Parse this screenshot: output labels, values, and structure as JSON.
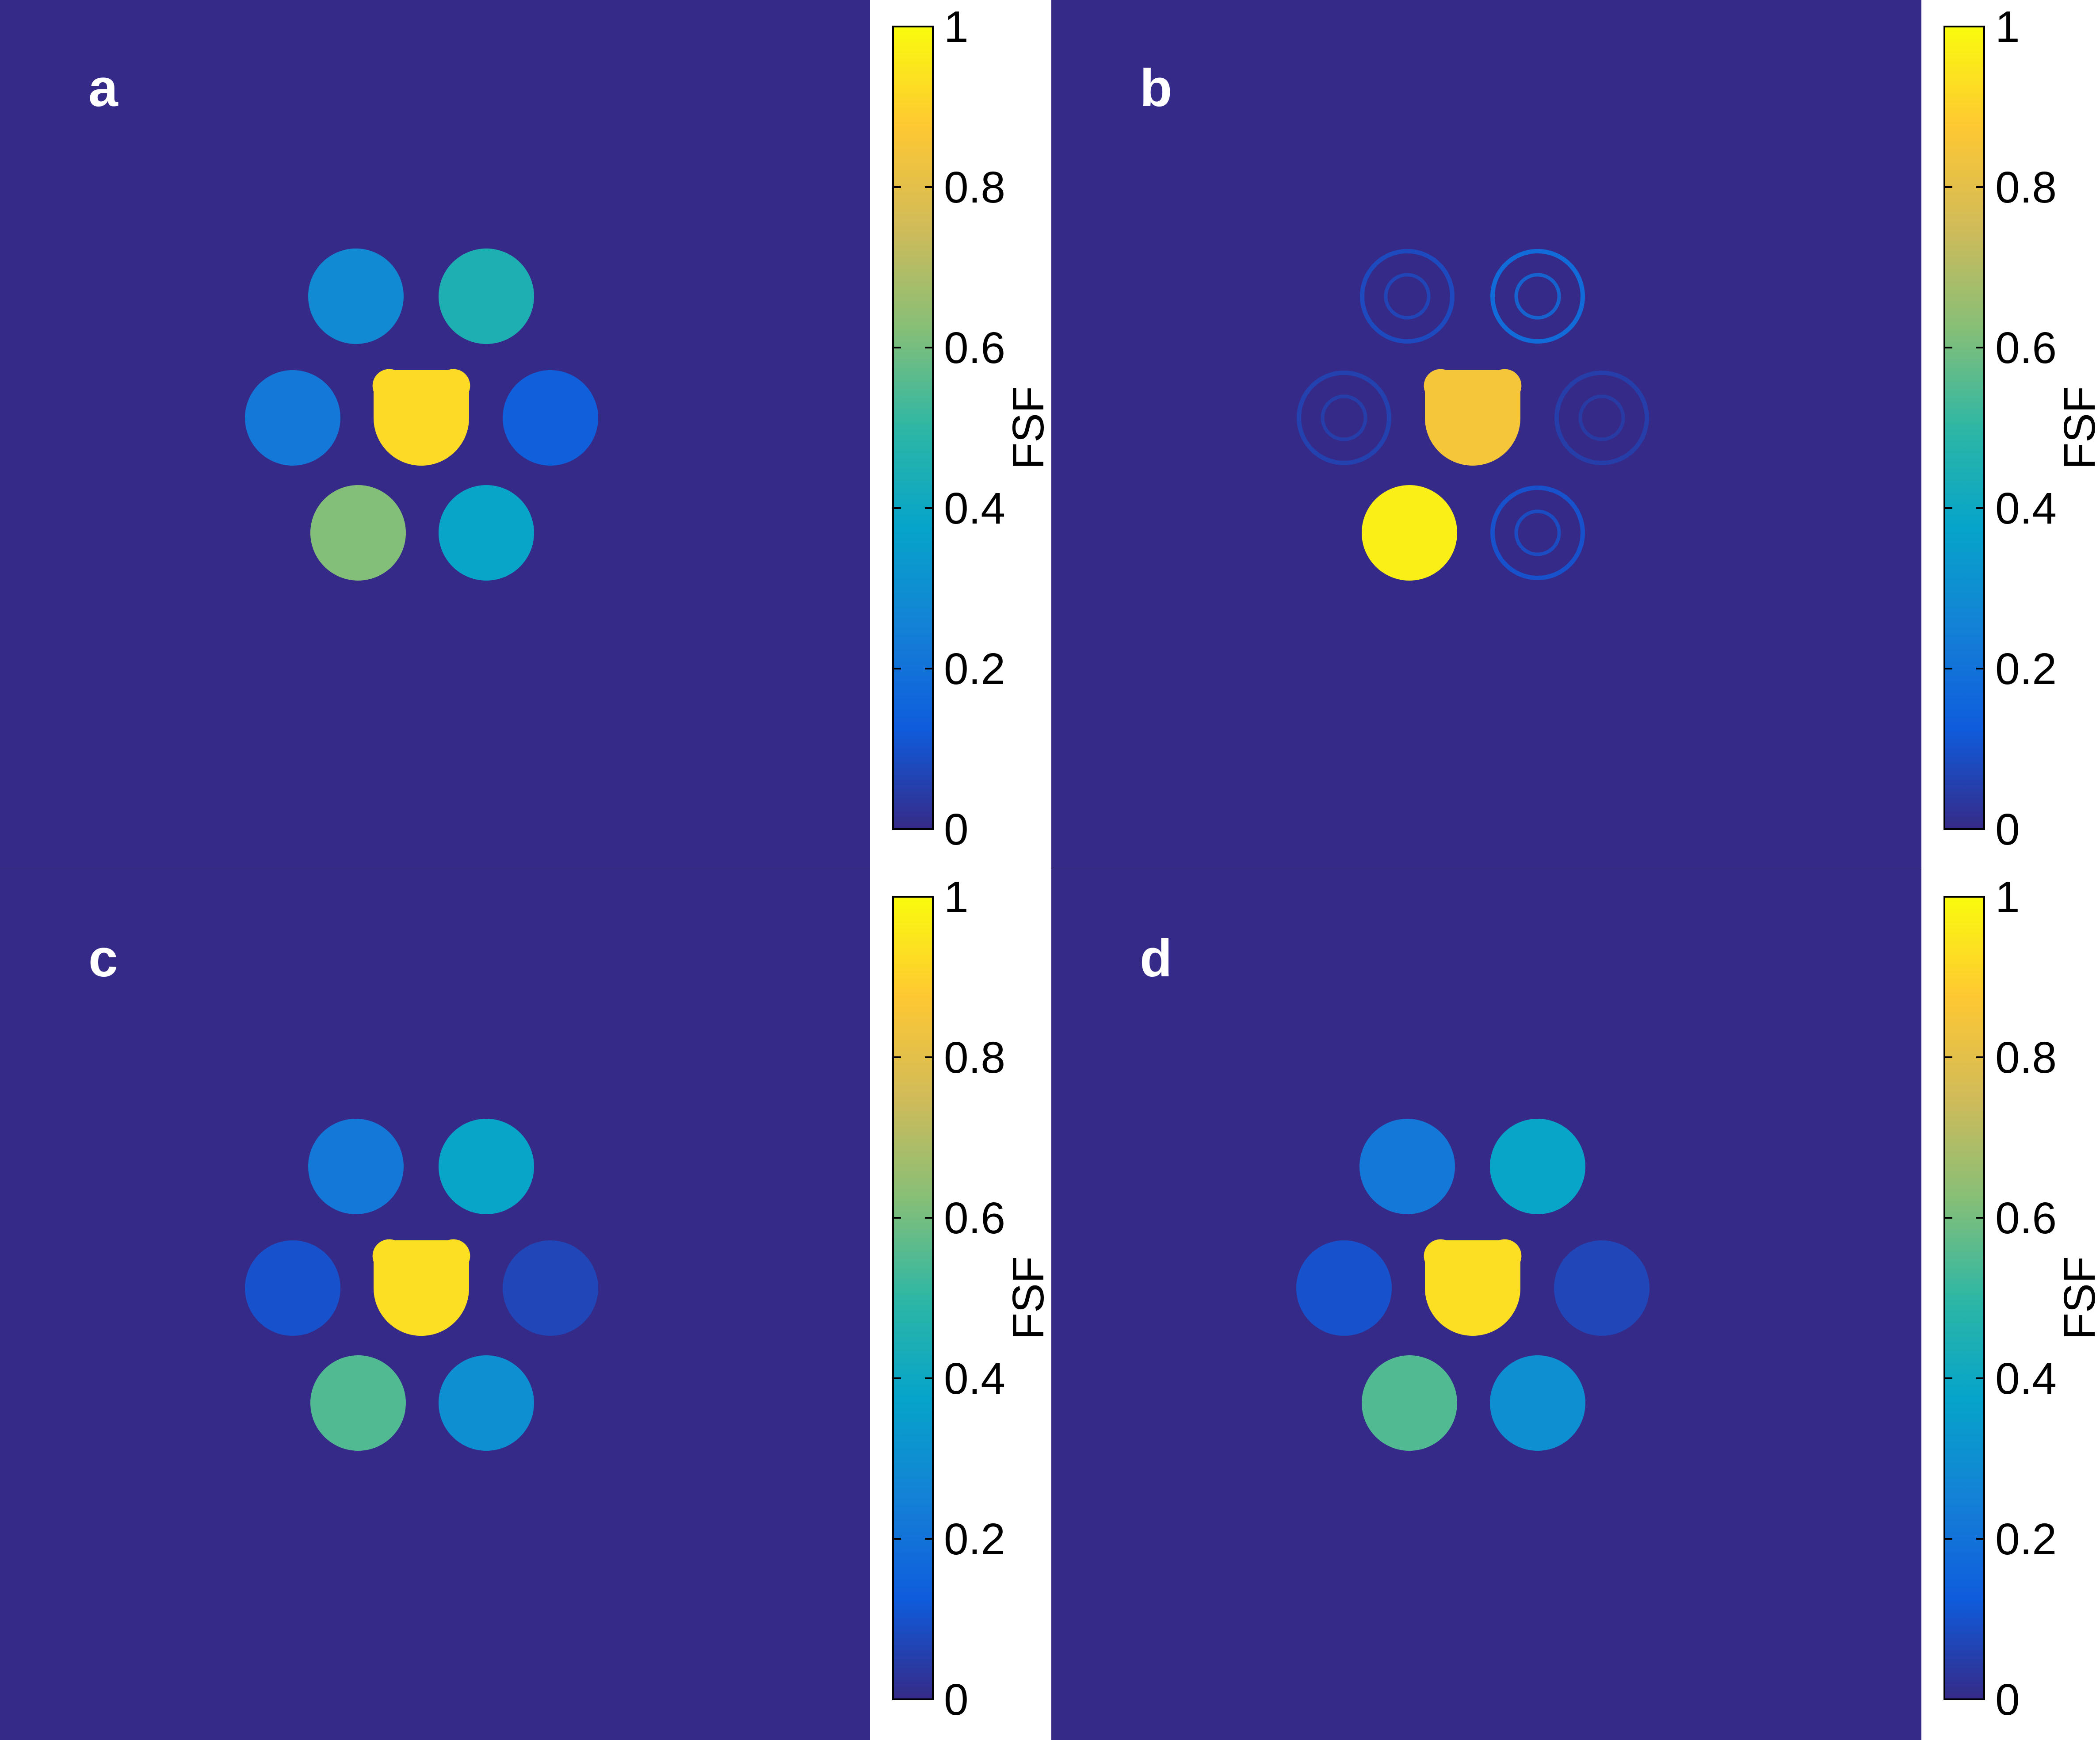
{
  "figure": {
    "background_map_color": "#352a87",
    "colormap": "parula",
    "colormap_stops": [
      "#352a87",
      "#0f5cdd",
      "#1481d6",
      "#06a4ca",
      "#2eb7a4",
      "#87bf77",
      "#d1bb59",
      "#fec832",
      "#f9fb0e"
    ]
  },
  "chart_data": [
    {
      "type": "heatmap",
      "panel": "a",
      "colorbar": {
        "label": "FSF",
        "ticks": [
          "0",
          "0.2",
          "0.4",
          "0.6",
          "0.8",
          "1"
        ],
        "range": [
          0,
          1
        ]
      },
      "regions": [
        {
          "id": "top-left",
          "shape": "circle",
          "value": 0.28
        },
        {
          "id": "top-right",
          "shape": "circle",
          "value": 0.45
        },
        {
          "id": "middle-left",
          "shape": "circle",
          "value": 0.22
        },
        {
          "id": "center",
          "shape": "notched",
          "value": 0.92
        },
        {
          "id": "middle-right",
          "shape": "circle",
          "value": 0.14
        },
        {
          "id": "bottom-left",
          "shape": "circle",
          "value": 0.62
        },
        {
          "id": "bottom-right",
          "shape": "circle",
          "value": 0.38
        }
      ]
    },
    {
      "type": "heatmap",
      "panel": "b",
      "colorbar": {
        "label": "FSF",
        "ticks": [
          "0",
          "0.2",
          "0.4",
          "0.6",
          "0.8",
          "1"
        ],
        "range": [
          0,
          1
        ]
      },
      "regions": [
        {
          "id": "top-left",
          "shape": "ring",
          "value": 0.08
        },
        {
          "id": "top-right",
          "shape": "ring",
          "value": 0.18
        },
        {
          "id": "middle-left",
          "shape": "ring",
          "value": 0.06
        },
        {
          "id": "center",
          "shape": "notched",
          "value": 0.85
        },
        {
          "id": "middle-right",
          "shape": "ring",
          "value": 0.05
        },
        {
          "id": "bottom-left",
          "shape": "circle",
          "value": 0.97
        },
        {
          "id": "bottom-right",
          "shape": "ring",
          "value": 0.1
        }
      ]
    },
    {
      "type": "heatmap",
      "panel": "c",
      "colorbar": {
        "label": "FSF",
        "ticks": [
          "0",
          "0.2",
          "0.4",
          "0.6",
          "0.8",
          "1"
        ],
        "range": [
          0,
          1
        ]
      },
      "regions": [
        {
          "id": "top-left",
          "shape": "circle",
          "value": 0.22
        },
        {
          "id": "top-right",
          "shape": "circle",
          "value": 0.38
        },
        {
          "id": "middle-left",
          "shape": "circle",
          "value": 0.1
        },
        {
          "id": "center",
          "shape": "notched",
          "value": 0.93
        },
        {
          "id": "middle-right",
          "shape": "circle",
          "value": 0.07
        },
        {
          "id": "bottom-left",
          "shape": "circle",
          "value": 0.55
        },
        {
          "id": "bottom-right",
          "shape": "circle",
          "value": 0.3
        }
      ]
    },
    {
      "type": "heatmap",
      "panel": "d",
      "colorbar": {
        "label": "FSF",
        "ticks": [
          "0",
          "0.2",
          "0.4",
          "0.6",
          "0.8",
          "1"
        ],
        "range": [
          0,
          1
        ]
      },
      "regions": [
        {
          "id": "top-left",
          "shape": "circle",
          "value": 0.22
        },
        {
          "id": "top-right",
          "shape": "circle",
          "value": 0.38
        },
        {
          "id": "middle-left",
          "shape": "circle",
          "value": 0.1
        },
        {
          "id": "center",
          "shape": "notched",
          "value": 0.93
        },
        {
          "id": "middle-right",
          "shape": "circle",
          "value": 0.07
        },
        {
          "id": "bottom-left",
          "shape": "circle",
          "value": 0.55
        },
        {
          "id": "bottom-right",
          "shape": "circle",
          "value": 0.3
        }
      ]
    }
  ]
}
